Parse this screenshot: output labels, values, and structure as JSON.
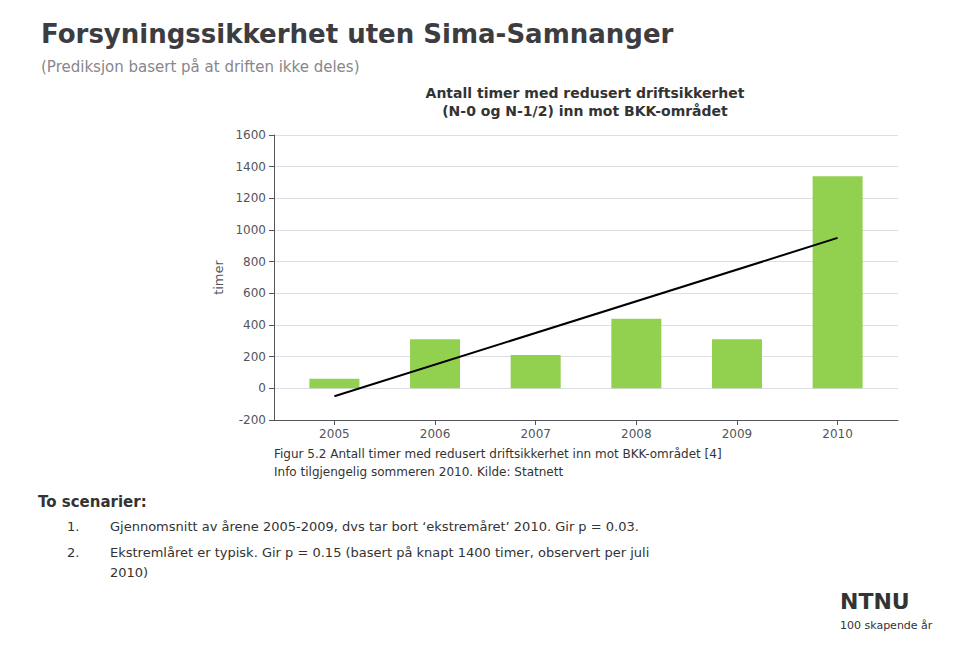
{
  "chart_data": {
    "type": "bar",
    "title": "Forsyningssikkerhet uten Sima-Samnanger",
    "subtitle": "(Prediksjon basert på at driften ikke deles)",
    "annotations": [
      "Antall timer med redusert driftsikkerhet",
      "(N-0 og N-1/2) inn mot BKK-området",
      "Figur 5.2 Antall timer med redusert driftsikkerhet inn mot BKK-området [4]",
      "Info tilgjengelig sommeren 2010. Kilde: Statnett",
      "To scenarier:",
      "1.",
      "Gjennomsnitt av årene 2005-2009, dvs tar bort ‘ekstremåret’ 2010. Gir p = 0.03.",
      "2.",
      "Ekstremlåret er typisk. Gir p = 0.15 (basert på knapt 1400 timer, observert per juli",
      "2010)",
      "NTNU",
      "100 skapende år"
    ],
    "ylabel": "timer",
    "series": [
      {
        "type": "bar",
        "color": "#92d050",
        "x": [
          2005,
          2006,
          2007,
          2008,
          2009,
          2010
        ],
        "values": [
          60,
          310,
          210,
          440,
          310,
          1340
        ]
      },
      {
        "type": "line",
        "color": "#000000",
        "x": [
          2005,
          2010
        ],
        "values": [
          -50,
          950
        ]
      }
    ],
    "xlim": [
      2004.4,
      2010.6
    ],
    "xticks": [
      2005,
      2006,
      2007,
      2008,
      2009,
      2010
    ],
    "ylim": [
      -200,
      1600
    ],
    "yticks": [
      -200,
      0,
      200,
      400,
      600,
      800,
      1000,
      1200,
      1400,
      1600
    ],
    "grid": true
  }
}
